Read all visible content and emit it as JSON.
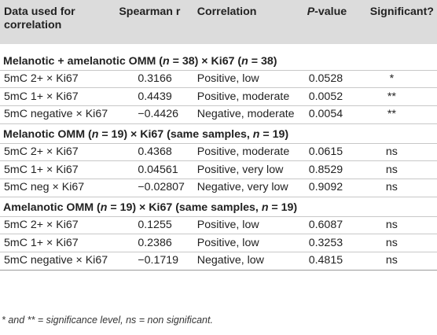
{
  "header": {
    "data_label": "Data used for correlation",
    "rho_label": "Spearman r",
    "corr_label": "Correlation",
    "p_label_italic": "P",
    "p_label_rest": "-value",
    "sig_label": "Significant?"
  },
  "sections": [
    {
      "title_a": "Melanotic + amelanotic OMM (",
      "title_n1": "n",
      "title_b": " = 38) × Ki67 (",
      "title_n2": "n",
      "title_c": " = 38)",
      "rows": [
        {
          "data": "5mC 2+ × Ki67",
          "rho": "0.3166",
          "corr": "Positive, low",
          "p": "0.0528",
          "sig": "*"
        },
        {
          "data": "5mC 1+ × Ki67",
          "rho": "0.4439",
          "corr": "Positive, moderate",
          "p": "0.0052",
          "sig": "**"
        },
        {
          "data": "5mC negative × Ki67",
          "rho": "−0.4426",
          "corr": "Negative, moderate",
          "p": "0.0054",
          "sig": "**"
        }
      ]
    },
    {
      "title_a": "Melanotic OMM (",
      "title_n1": "n",
      "title_b": " = 19) × Ki67 (same samples, ",
      "title_n2": "n",
      "title_c": " = 19)",
      "rows": [
        {
          "data": "5mC 2+ × Ki67",
          "rho": "0.4368",
          "corr": "Positive, moderate",
          "p": "0.0615",
          "sig": "ns"
        },
        {
          "data": "5mC 1+ × Ki67",
          "rho": "0.04561",
          "corr": "Positive, very low",
          "p": "0.8529",
          "sig": "ns"
        },
        {
          "data": "5mC neg × Ki67",
          "rho": "−0.02807",
          "corr": "Negative, very low",
          "p": "0.9092",
          "sig": "ns"
        }
      ]
    },
    {
      "title_a": "Amelanotic OMM (",
      "title_n1": "n",
      "title_b": " = 19) × Ki67 (same samples, ",
      "title_n2": "n",
      "title_c": " = 19)",
      "rows": [
        {
          "data": "5mC 2+ × Ki67",
          "rho": "0.1255",
          "corr": "Positive, low",
          "p": "0.6087",
          "sig": "ns"
        },
        {
          "data": "5mC 1+ × Ki67",
          "rho": "0.2386",
          "corr": "Positive, low",
          "p": "0.3253",
          "sig": "ns"
        },
        {
          "data": "5mC negative × Ki67",
          "rho": "−0.1719",
          "corr": "Negative, low",
          "p": "0.4815",
          "sig": "ns"
        }
      ]
    }
  ],
  "footnote": "* and ** = significance level, ns = non significant."
}
